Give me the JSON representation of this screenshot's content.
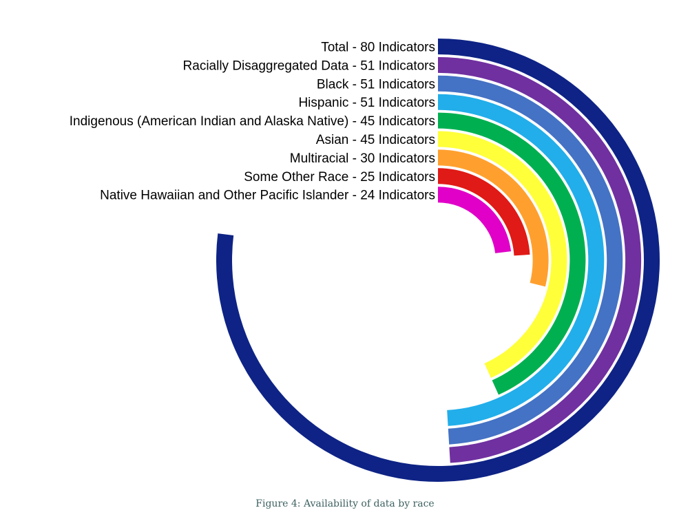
{
  "chart_data": {
    "type": "radial-bar",
    "title": "",
    "full_circle_value": 104,
    "series": [
      {
        "label": "Total - 80 Indicators",
        "value": 80,
        "color": "#0e2385"
      },
      {
        "label": "Racially Disaggregated Data - 51 Indicators",
        "value": 51,
        "color": "#7030a0"
      },
      {
        "label": "Black - 51 Indicators",
        "value": 51,
        "color": "#4472c4"
      },
      {
        "label": "Hispanic - 51 Indicators",
        "value": 51,
        "color": "#22aeea"
      },
      {
        "label": "Indigenous (American Indian and Alaska Native) - 45 Indicators",
        "value": 45,
        "color": "#00b050"
      },
      {
        "label": "Asian - 45 Indicators",
        "value": 45,
        "color": "#ffff3a"
      },
      {
        "label": "Multiracial - 30 Indicators",
        "value": 30,
        "color": "#ffa02e"
      },
      {
        "label": "Some Other Race - 25 Indicators",
        "value": 25,
        "color": "#e01a16"
      },
      {
        "label": "Native Hawaiian and Other Pacific Islander - 24 Indicators",
        "value": 24,
        "color": "#e000c8"
      }
    ]
  },
  "caption": "Figure 4: Availability of data by race"
}
